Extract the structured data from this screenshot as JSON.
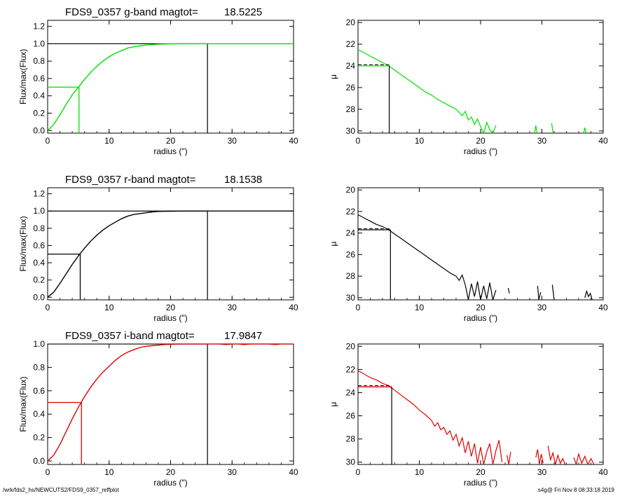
{
  "chart_data": [
    {
      "type": "line",
      "title_parts": [
        "FDS9_0357 g-band  magtot=",
        "18.5225"
      ],
      "xlabel": "radius (\")",
      "ylabel": "Flux/max(Flux)",
      "xlim": [
        0,
        40
      ],
      "ylim": [
        -0.03,
        1.27
      ],
      "x_ticks": [
        "0",
        "10",
        "20",
        "30",
        "40"
      ],
      "y_ticks": [
        "0.0",
        "0.2",
        "0.4",
        "0.6",
        "0.8",
        "1.0",
        "1.2"
      ],
      "color": "#00e000",
      "r_half": 5.1,
      "r_total": 26.0,
      "series": [
        {
          "x": [
            0,
            1,
            2,
            3,
            4,
            5,
            6,
            7,
            8,
            9,
            10,
            11,
            12,
            13,
            14,
            15,
            16,
            17,
            18,
            19,
            20,
            21,
            22,
            23,
            24,
            25,
            26,
            27,
            28,
            29,
            30,
            31,
            32,
            33,
            34,
            35,
            36,
            37,
            38,
            39,
            40
          ],
          "values": [
            0,
            0.07,
            0.18,
            0.3,
            0.41,
            0.5,
            0.59,
            0.67,
            0.74,
            0.8,
            0.85,
            0.89,
            0.92,
            0.95,
            0.965,
            0.975,
            0.985,
            0.99,
            0.995,
            0.997,
            0.998,
            0.999,
            1.0,
            1.0,
            1.0,
            1.0,
            1.0,
            1.0,
            1.0,
            1.0,
            1.0,
            1.0,
            1.0,
            1.0,
            1.0,
            1.0,
            1.0,
            1.0,
            1.0,
            1.0,
            1.0
          ]
        }
      ]
    },
    {
      "type": "line",
      "xlabel": "radius (\")",
      "ylabel": "μ",
      "xlim": [
        0,
        40
      ],
      "ylim": [
        30.2,
        19.8
      ],
      "x_ticks": [
        "0",
        "10",
        "20",
        "30",
        "40"
      ],
      "y_ticks": [
        "20",
        "22",
        "24",
        "26",
        "28",
        "30"
      ],
      "color": "#00e000",
      "mu_half": 24.0,
      "mu_half_fit": 23.9,
      "r_half": 5.1,
      "series": [
        {
          "segments": [
            {
              "x": [
                0,
                1,
                2,
                3,
                4,
                5,
                6,
                7,
                8,
                9,
                10,
                11,
                12,
                13,
                14,
                15,
                16,
                17,
                17.5,
                18,
                18.5,
                19,
                19.5,
                20,
                20.5,
                21,
                21.5,
                22,
                22.5
              ],
              "values": [
                22.5,
                22.8,
                23.1,
                23.4,
                23.7,
                24.0,
                24.4,
                24.8,
                25.2,
                25.6,
                26.0,
                26.4,
                26.7,
                27.1,
                27.4,
                27.7,
                28.0,
                28.6,
                28.2,
                29.0,
                28.7,
                29.4,
                28.9,
                29.6,
                30.2,
                29.2,
                29.9,
                30.2,
                29.5
              ]
            },
            {
              "x": [
                28.8,
                29.0,
                29.2
              ],
              "values": [
                30.2,
                29.5,
                30.2
              ]
            },
            {
              "x": [
                31.6,
                31.8
              ],
              "values": [
                29.3,
                30.2
              ]
            },
            {
              "x": [
                36.8,
                37.0,
                37.2
              ],
              "values": [
                30.2,
                29.7,
                30.2
              ]
            }
          ]
        }
      ]
    },
    {
      "type": "line",
      "title_parts": [
        "FDS9_0357 r-band  magtot=",
        "18.1538"
      ],
      "xlabel": "radius (\")",
      "ylabel": "Flux/max(Flux)",
      "xlim": [
        0,
        40
      ],
      "ylim": [
        -0.03,
        1.27
      ],
      "x_ticks": [
        "0",
        "10",
        "20",
        "30",
        "40"
      ],
      "y_ticks": [
        "0.0",
        "0.2",
        "0.4",
        "0.6",
        "0.8",
        "1.0",
        "1.2"
      ],
      "color": "#000000",
      "r_half": 5.3,
      "r_total": 26.0,
      "series": [
        {
          "x": [
            0,
            1,
            2,
            3,
            4,
            5,
            6,
            7,
            8,
            9,
            10,
            11,
            12,
            13,
            14,
            15,
            16,
            17,
            18,
            19,
            20,
            21,
            22,
            23,
            24,
            25,
            26,
            27,
            28,
            29,
            30,
            31,
            32,
            33,
            34,
            35,
            36,
            37,
            38,
            39,
            40
          ],
          "values": [
            0,
            0.06,
            0.16,
            0.27,
            0.38,
            0.48,
            0.57,
            0.65,
            0.72,
            0.78,
            0.83,
            0.87,
            0.91,
            0.94,
            0.96,
            0.97,
            0.98,
            0.99,
            0.995,
            0.997,
            0.998,
            0.999,
            1.0,
            1.0,
            1.0,
            1.0,
            1.0,
            1.0,
            1.0,
            1.0,
            1.0,
            1.0,
            1.0,
            1.0,
            1.0,
            1.0,
            1.0,
            1.0,
            1.0,
            1.0,
            1.0
          ]
        }
      ]
    },
    {
      "type": "line",
      "xlabel": "radius (\")",
      "ylabel": "μ",
      "xlim": [
        0,
        40
      ],
      "ylim": [
        30.2,
        19.8
      ],
      "x_ticks": [
        "0",
        "10",
        "20",
        "30",
        "40"
      ],
      "y_ticks": [
        "20",
        "22",
        "24",
        "26",
        "28",
        "30"
      ],
      "color": "#000000",
      "mu_half": 23.7,
      "mu_half_fit": 23.6,
      "r_half": 5.3,
      "series": [
        {
          "segments": [
            {
              "x": [
                0,
                1,
                2,
                3,
                4,
                5,
                6,
                7,
                8,
                9,
                10,
                11,
                12,
                13,
                14,
                15,
                16,
                16.5,
                17,
                17.5,
                18,
                18.5,
                19,
                19.5,
                20,
                20.5,
                21,
                21.5,
                22,
                22.5
              ],
              "values": [
                22.3,
                22.6,
                22.9,
                23.2,
                23.4,
                23.7,
                24.1,
                24.5,
                24.9,
                25.3,
                25.7,
                26.1,
                26.5,
                26.9,
                27.3,
                27.7,
                28.0,
                28.4,
                27.9,
                28.8,
                30.2,
                28.7,
                29.9,
                28.5,
                30.2,
                28.9,
                30.1,
                28.6,
                30.2,
                29.3
              ]
            },
            {
              "x": [
                24.5,
                24.7
              ],
              "values": [
                29.1,
                29.6
              ]
            },
            {
              "x": [
                29.3,
                29.5,
                29.8
              ],
              "values": [
                28.9,
                30.2,
                29.5
              ]
            },
            {
              "x": [
                31.7,
                32.0
              ],
              "values": [
                28.8,
                30.2
              ]
            },
            {
              "x": [
                37.0,
                37.3,
                37.6,
                37.9,
                38.2
              ],
              "values": [
                30.0,
                29.4,
                29.9,
                29.6,
                30.2
              ]
            }
          ]
        }
      ]
    },
    {
      "type": "line",
      "title_parts": [
        "FDS9_0357 i-band  magtot=",
        "17.9847"
      ],
      "xlabel": "radius (\")",
      "ylabel": "Flux/max(Flux)",
      "xlim": [
        0,
        40
      ],
      "ylim": [
        -0.03,
        1.0
      ],
      "x_ticks": [
        "0",
        "10",
        "20",
        "30",
        "40"
      ],
      "y_ticks": [
        "0.0",
        "0.2",
        "0.4",
        "0.6",
        "0.8",
        "1.0"
      ],
      "color": "#e00000",
      "r_half": 5.5,
      "r_total": 26.0,
      "series": [
        {
          "x": [
            0,
            1,
            2,
            3,
            4,
            5,
            6,
            7,
            8,
            9,
            10,
            11,
            12,
            13,
            14,
            15,
            16,
            17,
            18,
            19,
            20,
            21,
            22,
            23,
            24,
            25,
            26,
            27,
            28,
            29,
            30,
            31,
            32,
            33,
            34,
            35,
            36,
            37,
            38,
            39,
            40
          ],
          "values": [
            0,
            0.05,
            0.14,
            0.25,
            0.36,
            0.46,
            0.55,
            0.63,
            0.7,
            0.76,
            0.81,
            0.86,
            0.9,
            0.93,
            0.95,
            0.97,
            0.98,
            0.985,
            0.99,
            0.995,
            0.997,
            0.999,
            1.0,
            1.0,
            1.0,
            1.0,
            1.0,
            1.0,
            1.0,
            0.995,
            1.0,
            1.0,
            0.995,
            1.0,
            1.0,
            1.0,
            1.0,
            0.995,
            1.0,
            1.0,
            1.0
          ]
        }
      ]
    },
    {
      "type": "line",
      "xlabel": "radius (\")",
      "ylabel": "μ",
      "xlim": [
        0,
        40
      ],
      "ylim": [
        30.2,
        19.8
      ],
      "x_ticks": [
        "0",
        "10",
        "20",
        "30",
        "40"
      ],
      "y_ticks": [
        "20",
        "22",
        "24",
        "26",
        "28",
        "30"
      ],
      "color": "#e00000",
      "mu_half": 23.5,
      "mu_half_fit": 23.4,
      "r_half": 5.5,
      "series": [
        {
          "segments": [
            {
              "x": [
                0,
                1,
                2,
                3,
                4,
                5,
                6,
                7,
                8,
                9,
                10,
                11,
                12,
                12.5,
                13,
                13.5,
                14,
                14.5,
                15,
                15.5,
                16,
                16.5,
                17,
                17.5,
                18,
                18.5,
                19,
                19.5,
                20,
                20.5,
                21,
                21.5,
                22,
                22.5,
                23,
                23.5
              ],
              "values": [
                22.1,
                22.4,
                22.7,
                22.9,
                23.2,
                23.4,
                23.8,
                24.2,
                24.6,
                25.0,
                25.5,
                25.9,
                26.4,
                26.9,
                26.6,
                27.2,
                27.0,
                27.6,
                27.3,
                28.1,
                27.6,
                28.6,
                27.9,
                29.2,
                28.2,
                29.5,
                28.4,
                30.1,
                28.7,
                30.2,
                29.1,
                28.4,
                30.2,
                29.0,
                28.1,
                30.0
              ]
            },
            {
              "x": [
                24.3,
                24.6,
                24.9
              ],
              "values": [
                29.4,
                30.2,
                29.1
              ]
            },
            {
              "x": [
                29.0,
                29.3,
                29.6,
                29.9,
                30.2
              ],
              "values": [
                29.6,
                28.9,
                30.2,
                29.3,
                30.1
              ]
            },
            {
              "x": [
                31.0,
                31.4,
                31.8,
                32.2,
                32.6,
                33.0,
                33.4,
                33.8
              ],
              "values": [
                28.6,
                29.8,
                29.2,
                30.2,
                29.4,
                30.1,
                29.7,
                30.2
              ]
            },
            {
              "x": [
                35.2,
                35.6,
                36.0,
                36.5,
                37.0,
                37.5,
                38.0,
                38.5
              ],
              "values": [
                29.6,
                30.2,
                29.3,
                30.1,
                29.5,
                30.2,
                29.7,
                30.2
              ]
            }
          ]
        }
      ]
    }
  ],
  "footer": {
    "left": "/wrk/fds2_hs/NEWCUTS2/FDS9_0357_reffplot",
    "right": "s4g@  Fri Nov  8 08:33:18 2019"
  }
}
